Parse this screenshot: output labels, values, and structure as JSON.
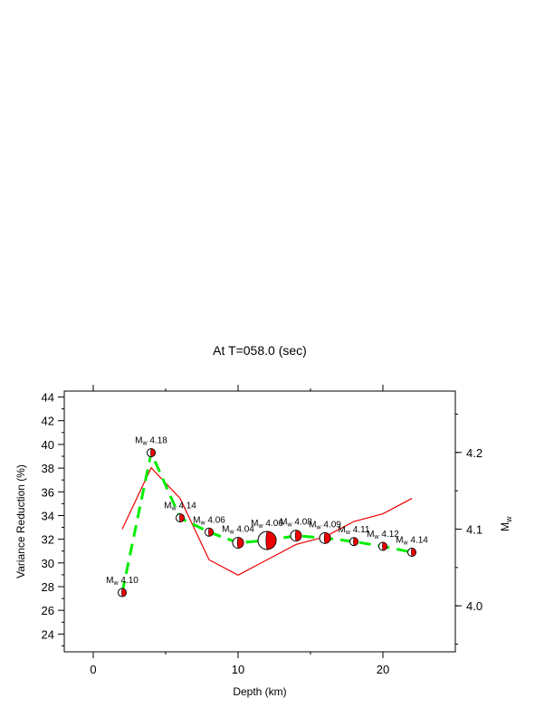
{
  "chart_data": {
    "type": "line",
    "title": "At T=058.0 (sec)",
    "xlabel": "Depth (km)",
    "ylabel": "Variance Reduction (%)",
    "y2label": {
      "main": "M",
      "sub": "w"
    },
    "xlim": [
      -2,
      25
    ],
    "ylim": [
      22.5,
      44.5
    ],
    "y2lim": [
      3.94,
      4.28
    ],
    "xticks": [
      0,
      10,
      20
    ],
    "yticks": [
      24,
      26,
      28,
      30,
      32,
      34,
      36,
      38,
      40,
      42,
      44
    ],
    "y2ticks": [
      4.0,
      4.1,
      4.2
    ],
    "grid": false,
    "colors": {
      "vr_line": "#00ee00",
      "mw_line": "#ee0000",
      "beachball": "#ee0000"
    },
    "series": [
      {
        "name": "Variance Reduction",
        "axis": "left",
        "style": "dashed",
        "x": [
          2,
          4,
          6,
          8,
          10,
          12,
          14,
          16,
          18,
          20,
          22
        ],
        "y": [
          27.5,
          39.3,
          33.8,
          32.6,
          31.7,
          31.9,
          32.3,
          32.1,
          31.8,
          31.4,
          30.9
        ]
      },
      {
        "name": "Mw",
        "axis": "right",
        "style": "solid",
        "x": [
          2,
          4,
          6,
          8,
          10,
          12,
          14,
          16,
          18,
          20,
          22
        ],
        "y": [
          4.1,
          4.18,
          4.14,
          4.06,
          4.04,
          4.06,
          4.08,
          4.09,
          4.11,
          4.12,
          4.14
        ]
      }
    ],
    "annotations": [
      {
        "x": 2,
        "prefix": "M",
        "sub": "w",
        "value": "4.10"
      },
      {
        "x": 4,
        "prefix": "M",
        "sub": "w",
        "value": "4.18"
      },
      {
        "x": 6,
        "prefix": "M",
        "sub": "w",
        "value": "4.14"
      },
      {
        "x": 8,
        "prefix": "M",
        "sub": "w",
        "value": "4.06"
      },
      {
        "x": 10,
        "prefix": "M",
        "sub": "w",
        "value": "4.04"
      },
      {
        "x": 12,
        "prefix": "M",
        "sub": "w",
        "value": "4.06"
      },
      {
        "x": 14,
        "prefix": "M",
        "sub": "w",
        "value": "4.08"
      },
      {
        "x": 16,
        "prefix": "M",
        "sub": "w",
        "value": "4.09"
      },
      {
        "x": 18,
        "prefix": "M",
        "sub": "w",
        "value": "4.11"
      },
      {
        "x": 20,
        "prefix": "M",
        "sub": "w",
        "value": "4.12"
      },
      {
        "x": 22,
        "prefix": "M",
        "sub": "w",
        "value": "4.14"
      }
    ]
  }
}
